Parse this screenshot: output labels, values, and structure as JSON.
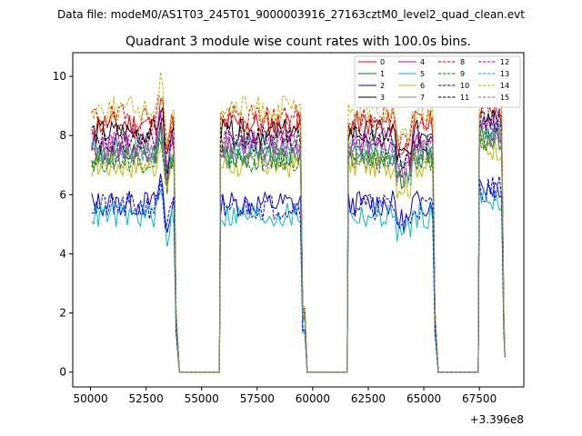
{
  "chart_data": {
    "type": "line",
    "suptitle": "Data file: modeM0/AS1T03_245T01_9000003916_27163cztM0_level2_quad_clean.evt",
    "title": "Quadrant 3 module wise count rates with 100.0s bins.",
    "xlabel": "",
    "ylabel": "",
    "offset_text": "+3.396e8",
    "xlim": [
      49200,
      69500
    ],
    "ylim": [
      -0.5,
      10.8
    ],
    "xticks": [
      50000,
      52500,
      55000,
      57500,
      60000,
      62500,
      65000,
      67500
    ],
    "xtick_labels": [
      "50000",
      "52500",
      "55000",
      "57500",
      "60000",
      "62500",
      "65000",
      "67500"
    ],
    "yticks": [
      0,
      2,
      4,
      6,
      8,
      10
    ],
    "ytick_labels": [
      "0",
      "2",
      "4",
      "6",
      "8",
      "10"
    ],
    "grid": false,
    "legend_position": "top-right",
    "segments": [
      [
        50050,
        53900
      ],
      [
        55850,
        59650
      ],
      [
        61600,
        65550
      ],
      [
        67500,
        68650
      ]
    ],
    "series": [
      {
        "name": "0",
        "color": "#ff0000",
        "dash": "solid",
        "level": 8.4,
        "seed": 11
      },
      {
        "name": "1",
        "color": "#008000",
        "dash": "solid",
        "level": 7.3,
        "seed": 12
      },
      {
        "name": "2",
        "color": "#0000ff",
        "dash": "solid",
        "level": 5.7,
        "seed": 13
      },
      {
        "name": "3",
        "color": "#000000",
        "dash": "solid",
        "level": 8.1,
        "seed": 14
      },
      {
        "name": "4",
        "color": "#c000c0",
        "dash": "solid",
        "level": 7.6,
        "seed": 15
      },
      {
        "name": "5",
        "color": "#00bfbf",
        "dash": "solid",
        "level": 5.3,
        "seed": 16
      },
      {
        "name": "6",
        "color": "#bfbf00",
        "dash": "solid",
        "level": 7.0,
        "seed": 17
      },
      {
        "name": "7",
        "color": "#808080",
        "dash": "solid",
        "level": 7.4,
        "seed": 18
      },
      {
        "name": "8",
        "color": "#ff0000",
        "dash": "dashed",
        "level": 8.6,
        "seed": 19
      },
      {
        "name": "9",
        "color": "#008000",
        "dash": "dashed",
        "level": 7.2,
        "seed": 20
      },
      {
        "name": "10",
        "color": "#0000ff",
        "dash": "dashed",
        "level": 5.6,
        "seed": 21
      },
      {
        "name": "11",
        "color": "#000000",
        "dash": "dashed",
        "level": 7.9,
        "seed": 22
      },
      {
        "name": "12",
        "color": "#c000c0",
        "dash": "dashed",
        "level": 7.8,
        "seed": 23
      },
      {
        "name": "13",
        "color": "#00bfbf",
        "dash": "dashed",
        "level": 7.5,
        "seed": 24
      },
      {
        "name": "14",
        "color": "#bfbf00",
        "dash": "dashed",
        "level": 8.9,
        "seed": 25
      },
      {
        "name": "15",
        "color": "#808080",
        "dash": "dashed",
        "level": 7.3,
        "seed": 26
      }
    ]
  }
}
